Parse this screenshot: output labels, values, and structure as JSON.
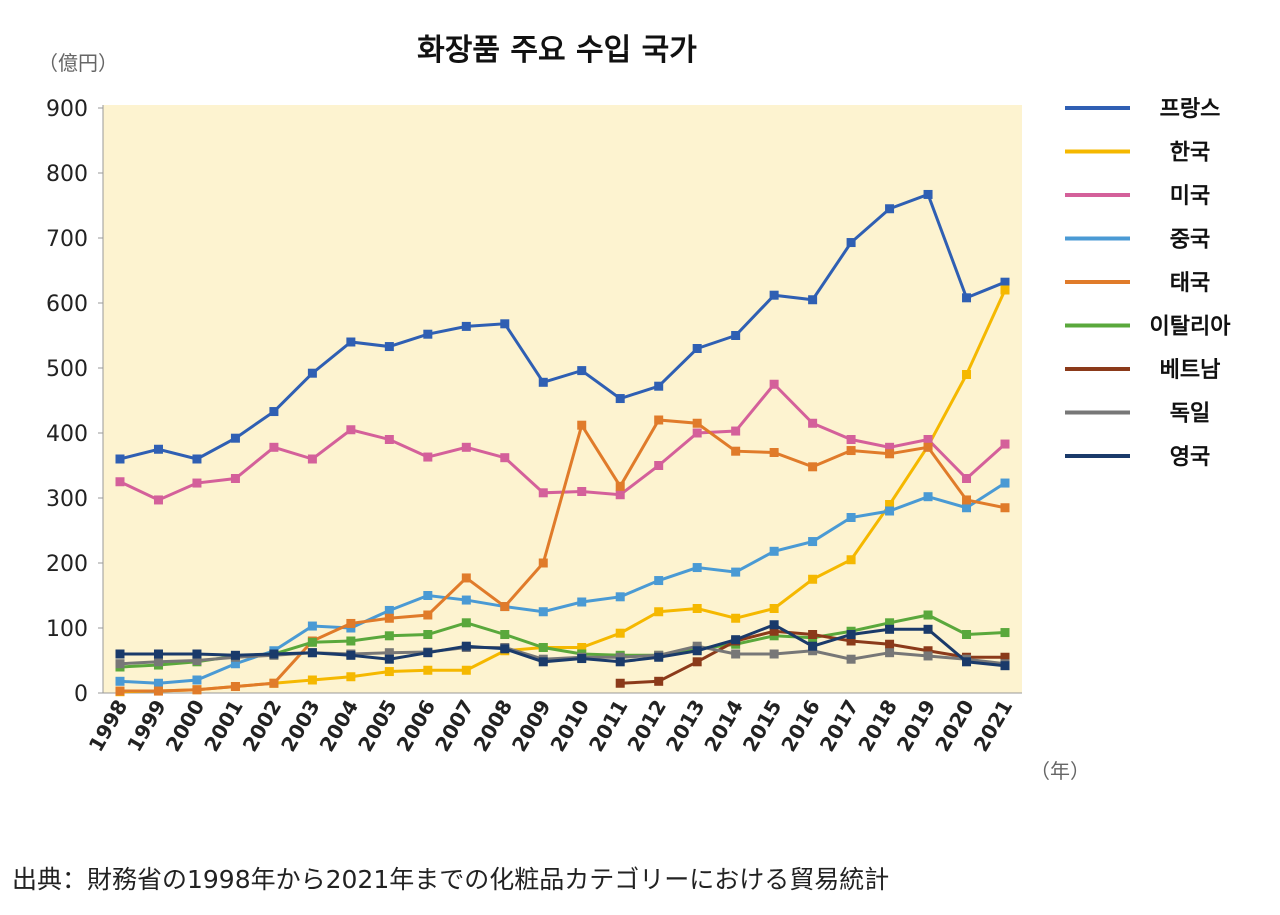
{
  "chart_data": {
    "type": "line",
    "title": "화장품 주요 수입 국가",
    "y_label": "（億円）",
    "x_label": "（年）",
    "source": "出典：財務省の1998年から2021年までの化粧品カテゴリーにおける貿易統計",
    "categories": [
      "1998",
      "1999",
      "2000",
      "2001",
      "2002",
      "2003",
      "2004",
      "2005",
      "2006",
      "2007",
      "2008",
      "2009",
      "2010",
      "2011",
      "2012",
      "2013",
      "2014",
      "2015",
      "2016",
      "2017",
      "2018",
      "2019",
      "2020",
      "2021"
    ],
    "ylim": [
      0,
      900
    ],
    "yticks": [
      0,
      100,
      200,
      300,
      400,
      500,
      600,
      700,
      800,
      900
    ],
    "legend": "right",
    "series": [
      {
        "name": "프랑스",
        "color": "#2f5fb3",
        "values": [
          360,
          375,
          360,
          392,
          433,
          492,
          540,
          533,
          552,
          564,
          568,
          478,
          496,
          453,
          472,
          530,
          550,
          612,
          605,
          693,
          745,
          767,
          608,
          632
        ]
      },
      {
        "name": "한국",
        "color": "#f5b800",
        "values": [
          2,
          3,
          5,
          10,
          15,
          20,
          25,
          33,
          35,
          35,
          65,
          70,
          70,
          92,
          125,
          130,
          115,
          130,
          175,
          205,
          290,
          380,
          490,
          620
        ]
      },
      {
        "name": "미국",
        "color": "#d4609a",
        "values": [
          325,
          297,
          323,
          330,
          378,
          360,
          405,
          390,
          363,
          378,
          362,
          308,
          310,
          305,
          350,
          400,
          403,
          475,
          415,
          390,
          378,
          390,
          330,
          383
        ]
      },
      {
        "name": "중국",
        "color": "#4a9ad4",
        "values": [
          18,
          15,
          20,
          45,
          65,
          103,
          100,
          127,
          150,
          143,
          133,
          125,
          140,
          148,
          173,
          193,
          186,
          218,
          233,
          270,
          280,
          302,
          285,
          323
        ]
      },
      {
        "name": "태국",
        "color": "#e07b2a",
        "values": [
          3,
          3,
          5,
          10,
          15,
          80,
          107,
          115,
          120,
          177,
          133,
          200,
          412,
          318,
          420,
          415,
          372,
          370,
          348,
          373,
          368,
          378,
          297,
          285
        ]
      },
      {
        "name": "이탈리아",
        "color": "#5aa83c",
        "values": [
          40,
          43,
          48,
          57,
          60,
          78,
          80,
          88,
          90,
          108,
          90,
          70,
          60,
          58,
          58,
          68,
          75,
          88,
          85,
          95,
          108,
          120,
          90,
          93
        ]
      },
      {
        "name": "베트남",
        "color": "#8b3a1a",
        "values": [
          null,
          null,
          null,
          null,
          null,
          null,
          null,
          null,
          null,
          null,
          null,
          null,
          null,
          15,
          18,
          48,
          80,
          95,
          90,
          80,
          75,
          65,
          55,
          55
        ]
      },
      {
        "name": "독일",
        "color": "#777777",
        "values": [
          45,
          48,
          50,
          55,
          58,
          62,
          60,
          62,
          63,
          70,
          70,
          52,
          55,
          55,
          58,
          72,
          60,
          60,
          65,
          52,
          62,
          57,
          52,
          45
        ]
      },
      {
        "name": "영국",
        "color": "#1a3a6a",
        "values": [
          60,
          60,
          60,
          58,
          60,
          62,
          58,
          52,
          62,
          72,
          68,
          48,
          53,
          48,
          55,
          65,
          82,
          105,
          72,
          90,
          98,
          98,
          48,
          42
        ]
      }
    ]
  }
}
